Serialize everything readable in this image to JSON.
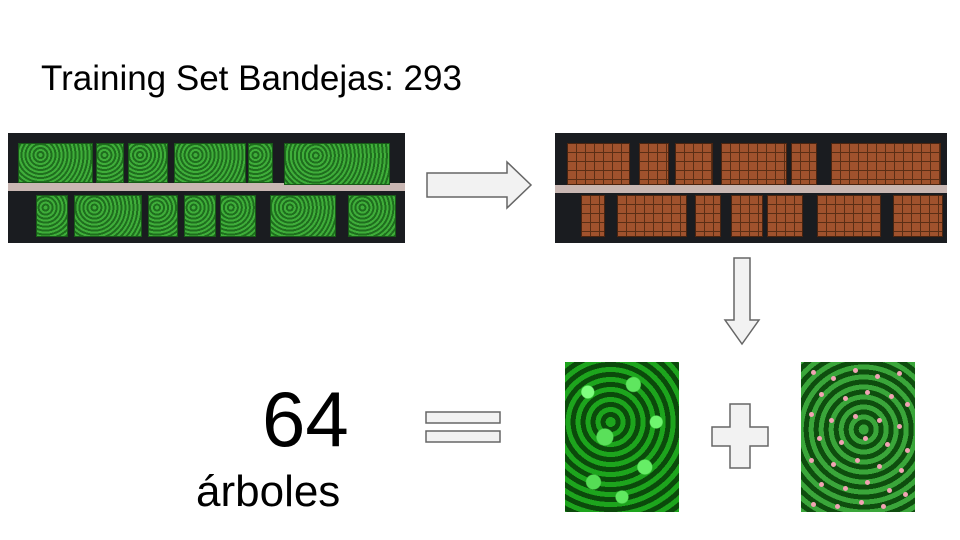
{
  "slide": {
    "title": "Training Set Bandejas: 293",
    "tree_count": "64",
    "tree_label": "árboles"
  },
  "images": {
    "source_tray": "aerial tray image with green tree beds",
    "labeled_tray": "tray image with brown grid overlay on beds",
    "rgb_patch": "green canopy crop",
    "points_patch": "green canopy crop with pink point annotations"
  },
  "icons": [
    "right-arrow-icon",
    "down-arrow-icon",
    "equals-icon",
    "plus-icon"
  ],
  "colors": {
    "foliage": "#2f8f2f",
    "grid_overlay": "#a0522d",
    "point_marker": "#f2a3b4",
    "arrow_fill": "#f2f2f2",
    "arrow_stroke": "#666666"
  }
}
